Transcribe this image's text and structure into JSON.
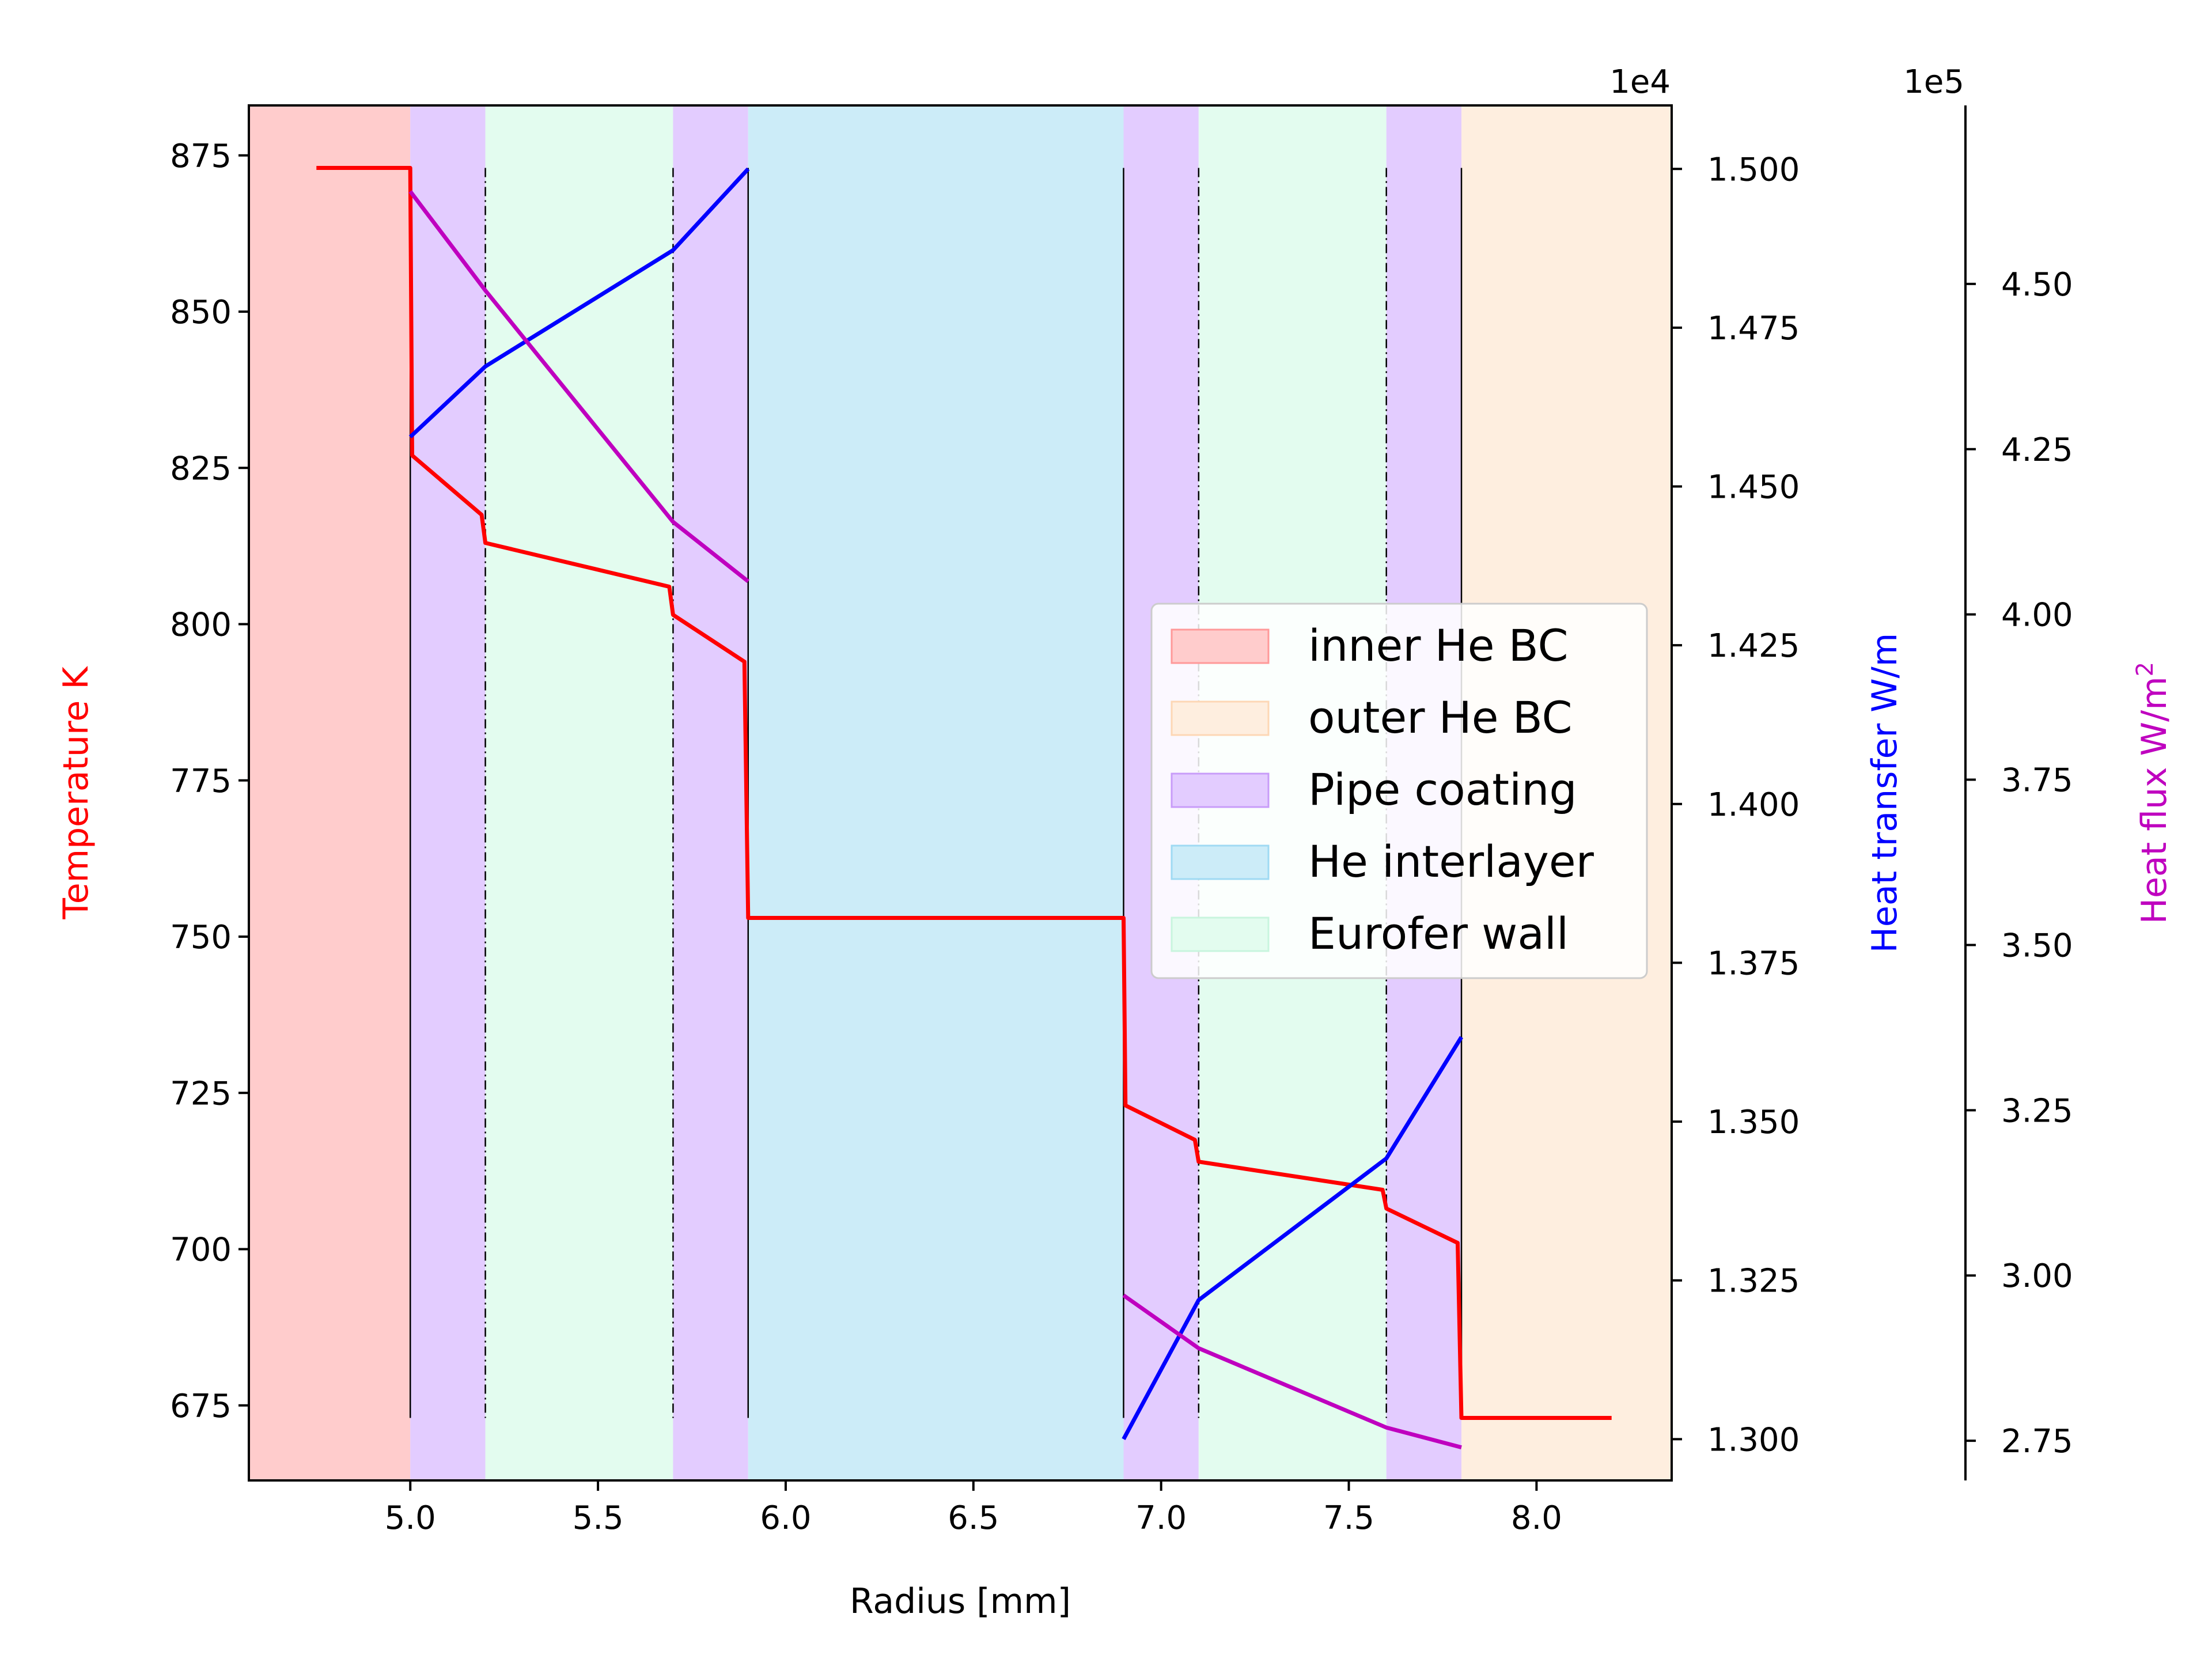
{
  "chart_data": {
    "type": "line",
    "xlabel": "Radius [mm]",
    "xlim": [
      4.57,
      8.36
    ],
    "xticks": [
      "5.0",
      "5.5",
      "6.0",
      "6.5",
      "7.0",
      "7.5",
      "8.0"
    ],
    "axes": {
      "temperature": {
        "label": "Temperature K",
        "color": "#ff0000",
        "ylim": [
          663,
          883
        ],
        "ticks": [
          "675",
          "700",
          "725",
          "750",
          "775",
          "800",
          "825",
          "850",
          "875"
        ]
      },
      "heat_transfer": {
        "label": "Heat transfer W/m",
        "color": "#0000ff",
        "multiplier": "1e4",
        "ylim": [
          1.2935,
          1.51
        ],
        "ticks": [
          "1.300",
          "1.325",
          "1.350",
          "1.375",
          "1.400",
          "1.425",
          "1.450",
          "1.475",
          "1.500"
        ]
      },
      "heat_flux": {
        "label_main": "Heat flux W/m",
        "label_sup": "2",
        "color": "#bf00bf",
        "multiplier": "1e5",
        "ylim": [
          2.69,
          4.77
        ],
        "ticks": [
          "2.75",
          "3.00",
          "3.25",
          "3.50",
          "3.75",
          "4.00",
          "4.25",
          "4.50"
        ]
      }
    },
    "regions": [
      {
        "name": "inner He BC",
        "x0": 4.57,
        "x1": 5.0,
        "color": "#ffcccc"
      },
      {
        "name": "Pipe coating",
        "x0": 5.0,
        "x1": 5.2,
        "color": "#e3ccff"
      },
      {
        "name": "Eurofer wall",
        "x0": 5.2,
        "x1": 5.7,
        "color": "#e3fcef"
      },
      {
        "name": "Pipe coating",
        "x0": 5.7,
        "x1": 5.9,
        "color": "#e3ccff"
      },
      {
        "name": "He interlayer",
        "x0": 5.9,
        "x1": 6.9,
        "color": "#ccecf8"
      },
      {
        "name": "Pipe coating",
        "x0": 6.9,
        "x1": 7.1,
        "color": "#e3ccff"
      },
      {
        "name": "Eurofer wall",
        "x0": 7.1,
        "x1": 7.6,
        "color": "#e3fcef"
      },
      {
        "name": "Pipe coating",
        "x0": 7.6,
        "x1": 7.8,
        "color": "#e3ccff"
      },
      {
        "name": "outer He BC",
        "x0": 7.8,
        "x1": 8.36,
        "color": "#feeedf"
      }
    ],
    "boundaries": [
      {
        "x": 5.0,
        "style": "solid"
      },
      {
        "x": 5.2,
        "style": "dashdot"
      },
      {
        "x": 5.7,
        "style": "dashdot"
      },
      {
        "x": 5.9,
        "style": "solid"
      },
      {
        "x": 6.9,
        "style": "solid"
      },
      {
        "x": 7.1,
        "style": "dashdot"
      },
      {
        "x": 7.6,
        "style": "dashdot"
      },
      {
        "x": 7.8,
        "style": "solid"
      }
    ],
    "boundary_range": [
      673,
      873
    ],
    "series": [
      {
        "axis": "temperature",
        "color": "#ff0000",
        "points": [
          [
            4.75,
            873
          ],
          [
            5.0,
            873
          ],
          [
            5.005,
            827
          ],
          [
            5.19,
            817.5
          ],
          [
            5.2,
            813
          ],
          [
            5.69,
            806
          ],
          [
            5.7,
            801.5
          ],
          [
            5.89,
            794
          ],
          [
            5.9,
            753
          ],
          [
            6.9,
            753
          ],
          [
            6.905,
            723
          ],
          [
            7.09,
            717.5
          ],
          [
            7.1,
            714
          ],
          [
            7.59,
            709.5
          ],
          [
            7.6,
            706.5
          ],
          [
            7.79,
            701
          ],
          [
            7.8,
            673
          ],
          [
            8.2,
            673
          ]
        ]
      },
      {
        "axis": "heat_transfer",
        "color": "#0000ff",
        "points": [
          [
            5.0,
            1.4578
          ],
          [
            5.2,
            1.4689
          ],
          [
            5.7,
            1.4872
          ],
          [
            5.9,
            1.5
          ]
        ]
      },
      {
        "axis": "heat_transfer",
        "color": "#0000ff",
        "points": [
          [
            6.9,
            1.3
          ],
          [
            7.1,
            1.3219
          ],
          [
            7.6,
            1.3442
          ],
          [
            7.8,
            1.3633
          ]
        ]
      },
      {
        "axis": "heat_flux",
        "color": "#bf00bf",
        "points": [
          [
            5.0,
            4.64
          ],
          [
            5.2,
            4.49
          ],
          [
            5.7,
            4.14
          ],
          [
            5.9,
            4.05
          ]
        ]
      },
      {
        "axis": "heat_flux",
        "color": "#bf00bf",
        "points": [
          [
            6.9,
            2.97
          ],
          [
            7.1,
            2.89
          ],
          [
            7.6,
            2.77
          ],
          [
            7.8,
            2.74
          ]
        ]
      }
    ],
    "legend": {
      "placement": "center-right",
      "entries": [
        {
          "label": "inner He BC",
          "color": "#ffcccc",
          "edge": "#ff9999"
        },
        {
          "label": "outer He BC",
          "color": "#feeedf",
          "edge": "#fdd7b5"
        },
        {
          "label": "Pipe coating",
          "color": "#e3ccff",
          "edge": "#c89cf9"
        },
        {
          "label": "He interlayer",
          "color": "#ccecf8",
          "edge": "#9fdaf3"
        },
        {
          "label": "Eurofer wall",
          "color": "#e3fcef",
          "edge": "#c8f5de"
        }
      ]
    }
  }
}
